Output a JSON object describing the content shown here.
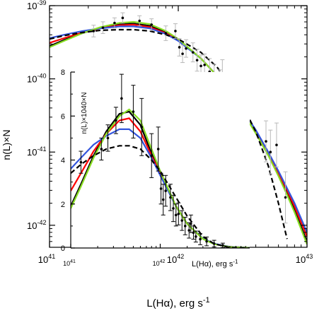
{
  "chart_data": [
    {
      "type": "line",
      "role": "main",
      "xscale": "log",
      "yscale": "log",
      "xlim": [
        1e+41,
        1e+43
      ],
      "ylim": [
        5e-43,
        1e-39
      ],
      "xlabel": "L(Hα), erg s",
      "xlabel_sup": "-1",
      "ylabel": "n(L)×N",
      "xticks": [
        {
          "value": 1e+41,
          "mant": "10",
          "exp": "41"
        },
        {
          "value": 1e+42,
          "mant": "10",
          "exp": "42"
        },
        {
          "value": 1e+43,
          "mant": "10",
          "exp": "43"
        }
      ],
      "yticks": [
        {
          "value": 1e-42,
          "mant": "10",
          "exp": "-42"
        },
        {
          "value": 1e-41,
          "mant": "10",
          "exp": "-41"
        },
        {
          "value": 1e-40,
          "mant": "10",
          "exp": "-40"
        },
        {
          "value": 1e-39,
          "mant": "10",
          "exp": "-39"
        }
      ],
      "points": [
        {
          "x": 2.2e+41,
          "y": 4.5e-40,
          "e": 0.08
        },
        {
          "x": 2.6e+41,
          "y": 5e-40,
          "e": 0.08
        },
        {
          "x": 3.2e+41,
          "y": 5.8e-40,
          "e": 0.07
        },
        {
          "x": 3.7e+41,
          "y": 6.8e-40,
          "e": 0.07
        },
        {
          "x": 5e+41,
          "y": 6.2e-40,
          "e": 0.07
        },
        {
          "x": 6.2e+41,
          "y": 5.5e-40,
          "e": 0.08
        },
        {
          "x": 8e+41,
          "y": 4.2e-40,
          "e": 0.1
        },
        {
          "x": 9.5e+41,
          "y": 4.5e-40,
          "e": 0.1
        },
        {
          "x": 1.02e+42,
          "y": 2.7e-40,
          "e": 0.12
        },
        {
          "x": 1.08e+42,
          "y": 2.2e-40,
          "e": 0.12
        },
        {
          "x": 1.15e+42,
          "y": 2.6e-40,
          "e": 0.12
        },
        {
          "x": 1.3e+42,
          "y": 2.3e-40,
          "e": 0.13
        },
        {
          "x": 1.4e+42,
          "y": 1.8e-40,
          "e": 0.15
        },
        {
          "x": 1.5e+42,
          "y": 1.5e-40,
          "e": 0.15
        },
        {
          "x": 1.6e+42,
          "y": 1.55e-40,
          "e": 0.15
        },
        {
          "x": 1.75e+42,
          "y": 1.25e-40,
          "e": 0.18
        },
        {
          "x": 1.9e+42,
          "y": 1e-40,
          "e": 0.2
        },
        {
          "x": 2e+42,
          "y": 6.5e-41,
          "e": 0.22
        },
        {
          "x": 2.1e+42,
          "y": 8e-41,
          "e": 0.22
        },
        {
          "x": 2.2e+42,
          "y": 1.1e-40,
          "e": 0.22
        },
        {
          "x": 2.35e+42,
          "y": 7e-41,
          "e": 0.24
        },
        {
          "x": 2.5e+42,
          "y": 5.2e-41,
          "e": 0.25
        },
        {
          "x": 2.7e+42,
          "y": 5.8e-41,
          "e": 0.25
        },
        {
          "x": 4.8e+42,
          "y": 1.4e-41,
          "e": 0.28
        },
        {
          "x": 5.2e+42,
          "y": 1e-41,
          "e": 0.3
        },
        {
          "x": 5.8e+42,
          "y": 1.25e-41,
          "e": 0.3
        },
        {
          "x": 6.8e+42,
          "y": 2.4e-42,
          "e": 0.35
        }
      ],
      "series": [
        {
          "color": "#000000",
          "style": "solid",
          "x": [
            1e+41,
            1.3e+41,
            1.8e+41,
            2.5e+41,
            3.5e+41,
            4.5e+41,
            6e+41,
            8e+41,
            1e+42,
            1.5e+42,
            2e+42,
            3e+42,
            4e+42,
            5e+42,
            6e+42,
            7e+42,
            8e+42,
            1e+43
          ],
          "y": [
            2.8e-40,
            3.4e-40,
            4.2e-40,
            5e-40,
            5.6e-40,
            5.7e-40,
            5.3e-40,
            4.3e-40,
            3.4e-40,
            1.9e-40,
            1.1e-40,
            4.2e-41,
            1.9e-41,
            9.5e-42,
            5e-42,
            2.8e-42,
            1.6e-42,
            6e-43
          ]
        },
        {
          "color": "#ff0000",
          "style": "solid",
          "x": [
            1e+41,
            1.3e+41,
            1.8e+41,
            2.5e+41,
            3.5e+41,
            4.5e+41,
            6e+41,
            8e+41,
            1e+42,
            1.5e+42,
            2e+42,
            3e+42,
            4e+42,
            5e+42,
            6e+42,
            7e+42,
            8e+42,
            1e+43
          ],
          "y": [
            3.1e-40,
            3.6e-40,
            4.3e-40,
            4.9e-40,
            5.4e-40,
            5.5e-40,
            5.1e-40,
            4.2e-40,
            3.4e-40,
            1.9e-40,
            1.1e-40,
            4.2e-41,
            1.9e-41,
            9.5e-42,
            5.2e-42,
            3e-42,
            1.8e-42,
            7e-43
          ]
        },
        {
          "color": "#3355dd",
          "style": "solid",
          "x": [
            1e+41,
            1.3e+41,
            1.8e+41,
            2.5e+41,
            3.5e+41,
            4.5e+41,
            6e+41,
            8e+41,
            1e+42,
            1.5e+42,
            2e+42,
            3e+42,
            4e+42,
            5e+42,
            6e+42,
            7e+42,
            8e+42,
            1e+43
          ],
          "y": [
            3.6e-40,
            4e-40,
            4.5e-40,
            4.9e-40,
            5.2e-40,
            5.2e-40,
            4.9e-40,
            4.1e-40,
            3.3e-40,
            1.9e-40,
            1.1e-40,
            4.3e-41,
            2e-41,
            1e-41,
            5.5e-42,
            3.2e-42,
            2e-42,
            8e-43
          ]
        },
        {
          "color": "#88dd22",
          "style": "solid",
          "x": [
            1e+41,
            1.3e+41,
            1.8e+41,
            2.5e+41,
            3.5e+41,
            4.5e+41,
            6e+41,
            8e+41,
            1e+42,
            1.5e+42,
            2e+42,
            3e+42,
            4e+42,
            5e+42,
            6e+42,
            7e+42,
            8e+42,
            1e+43
          ],
          "y": [
            2.7e-40,
            3.3e-40,
            4.2e-40,
            5.1e-40,
            5.8e-40,
            6e-40,
            5.6e-40,
            4.5e-40,
            3.5e-40,
            1.9e-40,
            1.1e-40,
            4.1e-41,
            1.8e-41,
            9e-42,
            4.7e-42,
            2.6e-42,
            1.5e-42,
            5.5e-43
          ]
        },
        {
          "color": "#000000",
          "style": "dashed",
          "x": [
            1e+41,
            1.3e+41,
            1.8e+41,
            2.5e+41,
            3.5e+41,
            4.5e+41,
            6e+41,
            8e+41,
            1e+42,
            1.5e+42,
            2e+42,
            3e+42,
            4e+42,
            5e+42,
            6e+42,
            7e+42
          ],
          "y": [
            3.5e-40,
            3.9e-40,
            4.3e-40,
            4.6e-40,
            4.7e-40,
            4.7e-40,
            4.5e-40,
            4e-40,
            3.5e-40,
            2.3e-40,
            1.45e-40,
            5.2e-41,
            1.9e-41,
            6.5e-42,
            2e-42,
            6.5e-43
          ]
        }
      ]
    },
    {
      "type": "line",
      "role": "inset",
      "xscale": "log",
      "yscale": "linear",
      "xlim": [
        1e+41,
        1e+43
      ],
      "ylim": [
        0,
        8
      ],
      "xlabel": "L(Hα), erg s",
      "xlabel_sup": "-1",
      "ylabel": "n(L)×1040×N",
      "xticks": [
        {
          "value": 1e+41,
          "mant": "10",
          "exp": "41"
        },
        {
          "value": 1e+42,
          "mant": "10",
          "exp": "42"
        }
      ],
      "yticks": [
        0,
        2,
        4,
        6,
        8
      ],
      "points": [
        {
          "x": 1.3e+41,
          "y": 3.9,
          "e": 0.5
        },
        {
          "x": 2.2e+41,
          "y": 4.5,
          "e": 0.5
        },
        {
          "x": 2.6e+41,
          "y": 5.0,
          "e": 0.6
        },
        {
          "x": 3.2e+41,
          "y": 5.8,
          "e": 0.6
        },
        {
          "x": 3.7e+41,
          "y": 6.8,
          "e": 1.1
        },
        {
          "x": 5e+41,
          "y": 6.2,
          "e": 1.2
        },
        {
          "x": 6.2e+41,
          "y": 5.5,
          "e": 1.3
        },
        {
          "x": 8e+41,
          "y": 4.2,
          "e": 1.0
        },
        {
          "x": 9.5e+41,
          "y": 4.5,
          "e": 1.0
        },
        {
          "x": 1.02e+42,
          "y": 2.7,
          "e": 0.7
        },
        {
          "x": 1.08e+42,
          "y": 2.2,
          "e": 0.7
        },
        {
          "x": 1.15e+42,
          "y": 2.6,
          "e": 0.7
        },
        {
          "x": 1.3e+42,
          "y": 2.3,
          "e": 0.6
        },
        {
          "x": 1.4e+42,
          "y": 1.8,
          "e": 0.6
        },
        {
          "x": 1.5e+42,
          "y": 1.5,
          "e": 0.5
        },
        {
          "x": 1.6e+42,
          "y": 1.55,
          "e": 0.5
        },
        {
          "x": 1.75e+42,
          "y": 1.25,
          "e": 0.45
        },
        {
          "x": 1.9e+42,
          "y": 1.0,
          "e": 0.4
        },
        {
          "x": 2.1e+42,
          "y": 0.8,
          "e": 0.35
        },
        {
          "x": 2.2e+42,
          "y": 1.1,
          "e": 0.4
        },
        {
          "x": 2.35e+42,
          "y": 0.7,
          "e": 0.3
        },
        {
          "x": 2.5e+42,
          "y": 0.52,
          "e": 0.25
        },
        {
          "x": 2.8e+42,
          "y": 0.4,
          "e": 0.25
        },
        {
          "x": 3.3e+42,
          "y": 0.3,
          "e": 0.2
        },
        {
          "x": 4e+42,
          "y": 0.2,
          "e": 0.15
        },
        {
          "x": 5e+42,
          "y": 0.12,
          "e": 0.1
        }
      ],
      "series": [
        {
          "color": "#000000",
          "style": "solid",
          "x": [
            1e+41,
            1.3e+41,
            1.8e+41,
            2.5e+41,
            3.5e+41,
            4.5e+41,
            6e+41,
            8e+41,
            1e+42,
            1.5e+42,
            2e+42,
            3e+42,
            4e+42,
            6e+42,
            1e+43
          ],
          "y": [
            1.9,
            2.9,
            4.2,
            5.3,
            6.1,
            6.2,
            5.6,
            4.3,
            3.4,
            1.9,
            1.1,
            0.42,
            0.19,
            0.05,
            0.01
          ]
        },
        {
          "color": "#ff0000",
          "style": "solid",
          "x": [
            1e+41,
            1.3e+41,
            1.8e+41,
            2.5e+41,
            3.5e+41,
            4.5e+41,
            6e+41,
            8e+41,
            1e+42,
            1.5e+42,
            2e+42,
            3e+42,
            4e+42,
            6e+42,
            1e+43
          ],
          "y": [
            2.6,
            3.4,
            4.4,
            5.2,
            5.8,
            5.9,
            5.3,
            4.2,
            3.4,
            1.9,
            1.1,
            0.42,
            0.19,
            0.05,
            0.01
          ]
        },
        {
          "color": "#3355dd",
          "style": "solid",
          "x": [
            1e+41,
            1.3e+41,
            1.8e+41,
            2.5e+41,
            3.5e+41,
            4.5e+41,
            6e+41,
            8e+41,
            1e+42,
            1.5e+42,
            2e+42,
            3e+42,
            4e+42,
            6e+42,
            1e+43
          ],
          "y": [
            3.6,
            4.1,
            4.7,
            5.1,
            5.4,
            5.4,
            5.0,
            4.1,
            3.3,
            1.9,
            1.1,
            0.43,
            0.2,
            0.055,
            0.012
          ]
        },
        {
          "color": "#88dd22",
          "style": "solid",
          "x": [
            1e+41,
            1.3e+41,
            1.8e+41,
            2.5e+41,
            3.5e+41,
            4.5e+41,
            6e+41,
            8e+41,
            1e+42,
            1.5e+42,
            2e+42,
            3e+42,
            4e+42,
            6e+42,
            1e+43
          ],
          "y": [
            1.8,
            2.8,
            4.1,
            5.2,
            6.0,
            6.3,
            5.8,
            4.5,
            3.5,
            1.9,
            1.1,
            0.41,
            0.18,
            0.045,
            0.009
          ]
        },
        {
          "color": "#000000",
          "style": "dashed",
          "x": [
            1e+41,
            1.3e+41,
            1.8e+41,
            2.5e+41,
            3.5e+41,
            4.5e+41,
            6e+41,
            8e+41,
            1e+42,
            1.5e+42,
            2e+42,
            3e+42,
            4e+42,
            6e+42,
            1e+43
          ],
          "y": [
            3.4,
            3.8,
            4.2,
            4.5,
            4.65,
            4.65,
            4.5,
            4.0,
            3.5,
            2.3,
            1.45,
            0.52,
            0.19,
            0.02,
            0.0
          ]
        }
      ]
    }
  ]
}
